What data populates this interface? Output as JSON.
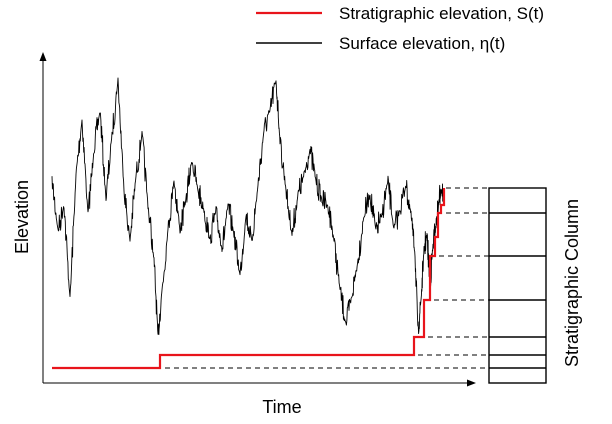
{
  "legend": {
    "stratigraphic": {
      "label": "Stratigraphic elevation, S(t)",
      "color": "#e8141b"
    },
    "surface": {
      "label": "Surface elevation, η(t)",
      "color": "#000000"
    }
  },
  "axes": {
    "x_label": "Time",
    "y_label": "Elevation"
  },
  "column_label": "Stratigraphic Column",
  "colors": {
    "axis": "#000000",
    "guide": "#000000",
    "column": "#000000"
  }
}
